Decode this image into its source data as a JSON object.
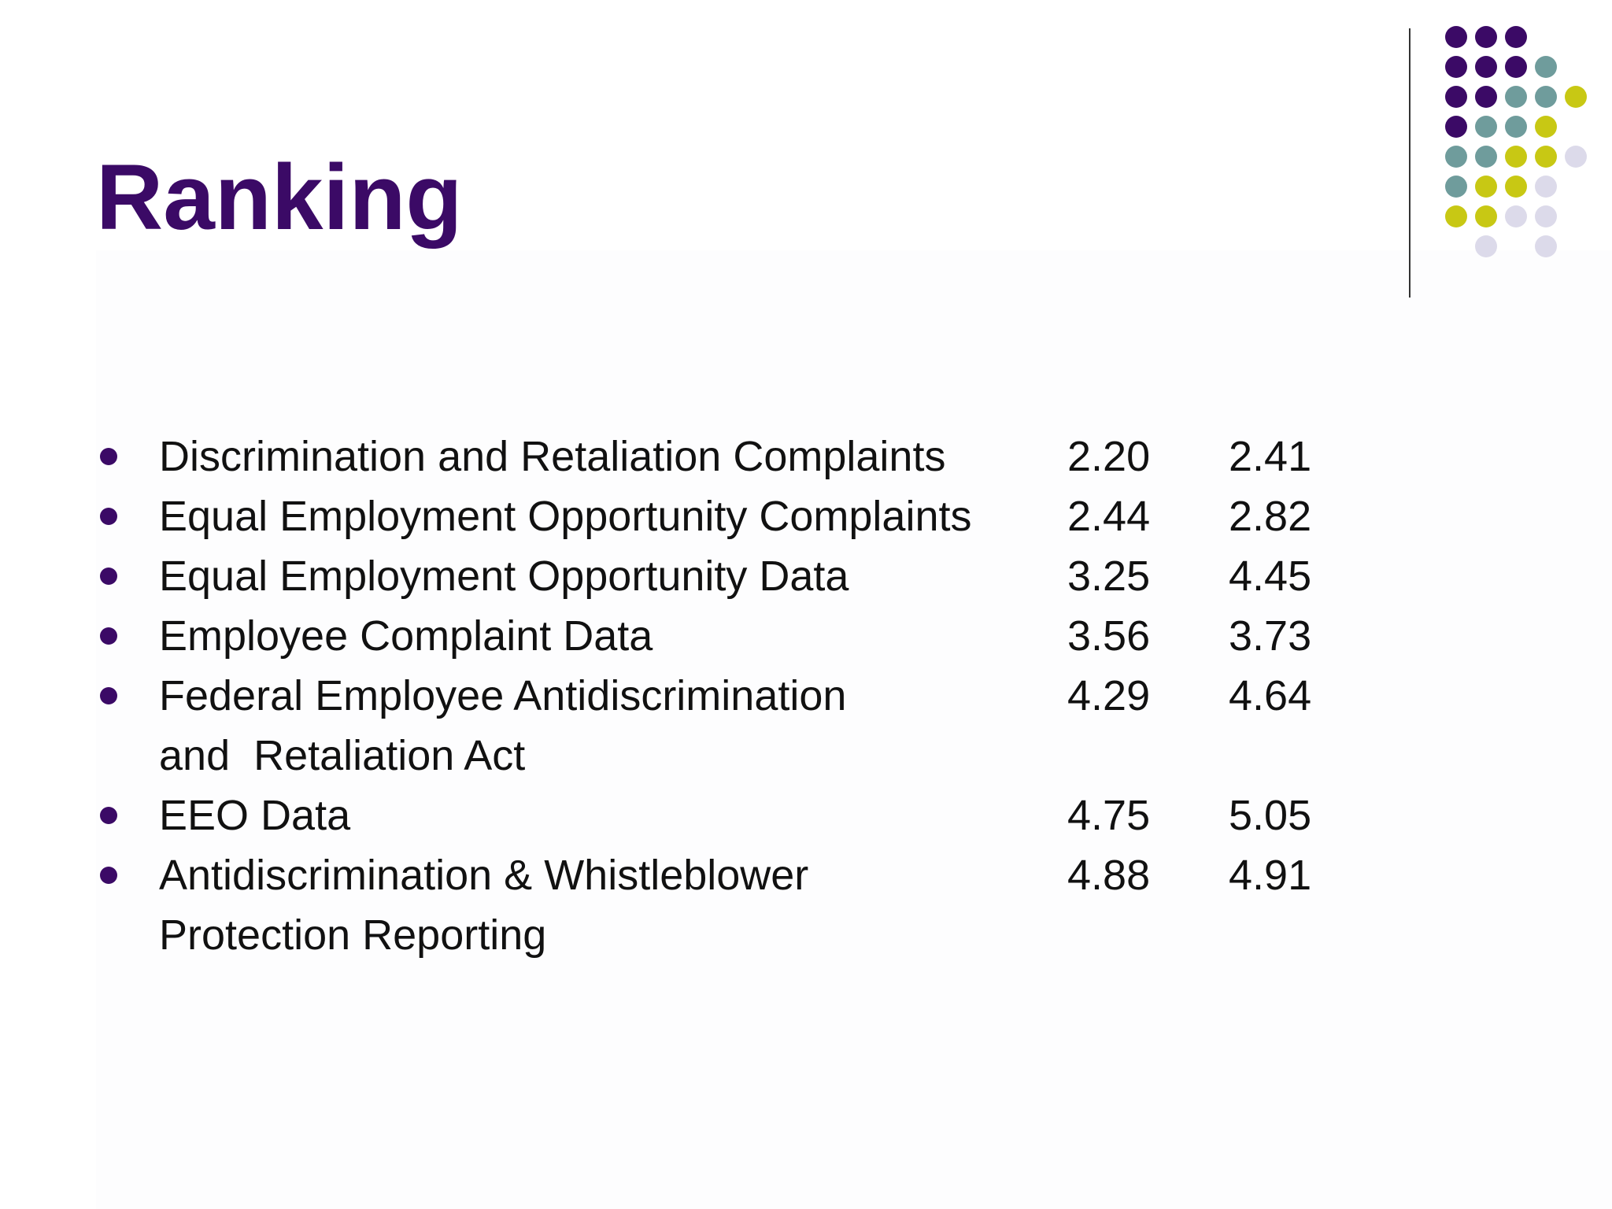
{
  "slide": {
    "title": "Ranking"
  },
  "colors": {
    "title": "#3b0a66",
    "bullet": "#3b0a66",
    "dot_purple": "#3b0a66",
    "dot_teal": "#6f9c9c",
    "dot_yellow": "#c8c814",
    "dot_lavender": "#dcdaea"
  },
  "items": [
    {
      "label": "Discrimination and Retaliation Complaints",
      "value1": "2.20",
      "value2": "2.41"
    },
    {
      "label": "Equal Employment Opportunity Complaints",
      "value1": "2.44",
      "value2": "2.82"
    },
    {
      "label": "Equal Employment Opportunity Data",
      "value1": "3.25",
      "value2": "4.45"
    },
    {
      "label": "Employee Complaint Data",
      "value1": "3.56",
      "value2": "3.73"
    },
    {
      "label": "Federal Employee Antidiscrimination\nand  Retaliation Act",
      "value1": "4.29",
      "value2": "4.64"
    },
    {
      "label": "EEO Data",
      "value1": "4.75",
      "value2": "5.05"
    },
    {
      "label": "Antidiscrimination & Whistleblower\nProtection Reporting",
      "value1": "4.88",
      "value2": "4.91"
    }
  ]
}
